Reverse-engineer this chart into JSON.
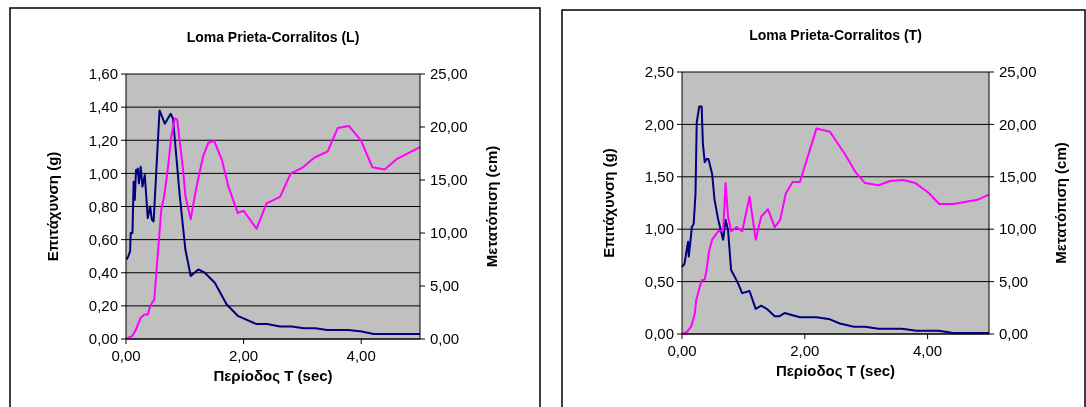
{
  "chart_data": [
    {
      "type": "line",
      "title": "Loma Prieta-Corralitos (L)",
      "xlabel": "Περίοδος Τ (sec)",
      "ylabel": "Επιτάχυνση (g)",
      "y2label": "Μετατόπιση (cm)",
      "grid": "y",
      "marker": "none",
      "xlim": [
        0,
        5
      ],
      "xticks": [
        {
          "value": 0,
          "label": "0,00"
        },
        {
          "value": 2,
          "label": "2,00"
        },
        {
          "value": 4,
          "label": "4,00"
        }
      ],
      "ylim": [
        0,
        1.6
      ],
      "yticks": [
        {
          "value": 0,
          "label": "0,00"
        },
        {
          "value": 0.2,
          "label": "0,20"
        },
        {
          "value": 0.4,
          "label": "0,40"
        },
        {
          "value": 0.6,
          "label": "0,60"
        },
        {
          "value": 0.8,
          "label": "0,80"
        },
        {
          "value": 1,
          "label": "1,00"
        },
        {
          "value": 1.2,
          "label": "1,20"
        },
        {
          "value": 1.4,
          "label": "1,40"
        },
        {
          "value": 1.6,
          "label": "1,60"
        }
      ],
      "y2lim": [
        0,
        25
      ],
      "y2ticks": [
        {
          "value": 0,
          "label": "0,00"
        },
        {
          "value": 5,
          "label": "5,00"
        },
        {
          "value": 10,
          "label": "10,00"
        },
        {
          "value": 15,
          "label": "15,00"
        },
        {
          "value": 20,
          "label": "20,00"
        },
        {
          "value": 25,
          "label": "25,00"
        }
      ],
      "series": [
        {
          "color": "#000080",
          "x": [
            0.01,
            0.04,
            0.07,
            0.08,
            0.11,
            0.13,
            0.15,
            0.17,
            0.19,
            0.2,
            0.22,
            0.25,
            0.28,
            0.32,
            0.37,
            0.41,
            0.44,
            0.47,
            0.57,
            0.66,
            0.76,
            0.8,
            0.91,
            1.01,
            1.1,
            1.23,
            1.34,
            1.51,
            1.71,
            1.9,
            2.22,
            2.4,
            2.62,
            2.82,
            3.02,
            3.22,
            3.42,
            3.78,
            4.01,
            4.21,
            5.0
          ],
          "values": [
            0.48,
            0.5,
            0.53,
            0.64,
            0.64,
            0.95,
            0.84,
            1.02,
            1,
            1.03,
            0.94,
            1.04,
            0.92,
            0.99,
            0.73,
            0.8,
            0.72,
            0.71,
            1.38,
            1.3,
            1.36,
            1.33,
            0.88,
            0.54,
            0.38,
            0.42,
            0.4,
            0.34,
            0.21,
            0.14,
            0.09,
            0.09,
            0.075,
            0.075,
            0.065,
            0.065,
            0.055,
            0.055,
            0.045,
            0.03,
            0.03
          ]
        },
        {
          "color": "#ff00ff",
          "axis": "y2",
          "x": [
            0,
            0.11,
            0.17,
            0.21,
            0.25,
            0.31,
            0.37,
            0.4,
            0.45,
            0.48,
            0.6,
            0.65,
            0.71,
            0.77,
            0.83,
            0.87,
            0.97,
            1.01,
            1.1,
            1.2,
            1.31,
            1.4,
            1.5,
            1.63,
            1.74,
            1.9,
            2.0,
            2.22,
            2.39,
            2.62,
            2.8,
            3.01,
            3.2,
            3.43,
            3.6,
            3.79,
            4.0,
            4.19,
            4.4,
            4.61,
            5.0
          ],
          "values": [
            0,
            0.3,
            0.9,
            1.5,
            2,
            2.3,
            2.3,
            2.9,
            3.5,
            3.7,
            12.2,
            13.5,
            16,
            19.1,
            20.8,
            20.7,
            16,
            13.5,
            11.3,
            14.4,
            17.2,
            18.5,
            18.7,
            16.9,
            14.4,
            11.9,
            12.1,
            10.4,
            12.8,
            13.4,
            15.6,
            16.2,
            17.1,
            17.7,
            19.9,
            20.1,
            18.7,
            16.2,
            16,
            17,
            18.1
          ]
        }
      ]
    },
    {
      "type": "line",
      "title": "Loma Prieta-Corralitos (T)",
      "xlabel": "Περίοδος Τ (sec)",
      "ylabel": "Επιτάχυνση (g)",
      "y2label": "Μετατόπιση (cm)",
      "grid": "y",
      "marker": "none",
      "xlim": [
        0,
        5
      ],
      "xticks": [
        {
          "value": 0,
          "label": "0,00"
        },
        {
          "value": 2,
          "label": "2,00"
        },
        {
          "value": 4,
          "label": "4,00"
        }
      ],
      "ylim": [
        0,
        2.5
      ],
      "yticks": [
        {
          "value": 0,
          "label": "0,00"
        },
        {
          "value": 0.5,
          "label": "0,50"
        },
        {
          "value": 1,
          "label": "1,00"
        },
        {
          "value": 1.5,
          "label": "1,50"
        },
        {
          "value": 2,
          "label": "2,00"
        },
        {
          "value": 2.5,
          "label": "2,50"
        }
      ],
      "y2lim": [
        0,
        25
      ],
      "y2ticks": [
        {
          "value": 0,
          "label": "0,00"
        },
        {
          "value": 5,
          "label": "5,00"
        },
        {
          "value": 10,
          "label": "10,00"
        },
        {
          "value": 15,
          "label": "15,00"
        },
        {
          "value": 20,
          "label": "20,00"
        },
        {
          "value": 25,
          "label": "25,00"
        }
      ],
      "series": [
        {
          "color": "#000080",
          "x": [
            0,
            0.04,
            0.07,
            0.1,
            0.11,
            0.14,
            0.16,
            0.19,
            0.22,
            0.24,
            0.28,
            0.32,
            0.34,
            0.37,
            0.4,
            0.43,
            0.49,
            0.53,
            0.59,
            0.67,
            0.71,
            0.75,
            0.8,
            0.9,
            0.98,
            1.1,
            1.2,
            1.29,
            1.38,
            1.51,
            1.59,
            1.67,
            1.92,
            2.19,
            2.41,
            2.57,
            2.8,
            2.98,
            3.2,
            3.58,
            3.82,
            4.18,
            4.42,
            5.0
          ],
          "values": [
            0.64,
            0.67,
            0.78,
            0.88,
            0.74,
            0.9,
            1.02,
            1.05,
            1.34,
            2.02,
            2.17,
            2.17,
            1.82,
            1.64,
            1.67,
            1.67,
            1.53,
            1.28,
            1.09,
            0.9,
            1.09,
            0.99,
            0.61,
            0.5,
            0.39,
            0.41,
            0.24,
            0.27,
            0.24,
            0.17,
            0.17,
            0.2,
            0.16,
            0.16,
            0.14,
            0.1,
            0.07,
            0.07,
            0.05,
            0.05,
            0.03,
            0.03,
            0.01,
            0.01
          ]
        },
        {
          "color": "#ff00ff",
          "axis": "y2",
          "x": [
            0,
            0.08,
            0.15,
            0.21,
            0.23,
            0.29,
            0.32,
            0.37,
            0.4,
            0.44,
            0.49,
            0.59,
            0.67,
            0.71,
            0.75,
            0.8,
            0.89,
            0.98,
            1.1,
            1.2,
            1.29,
            1.4,
            1.51,
            1.6,
            1.69,
            1.8,
            1.92,
            2.19,
            2.41,
            2.66,
            2.82,
            2.98,
            3.2,
            3.39,
            3.6,
            3.8,
            4.01,
            4.19,
            4.42,
            4.81,
            5.0
          ],
          "values": [
            0,
            0.2,
            0.7,
            2,
            3.2,
            4.5,
            5.1,
            5.2,
            6.1,
            7.9,
            9,
            9.8,
            9.9,
            14.4,
            11.2,
            9.8,
            10.2,
            9.8,
            13.1,
            9,
            11.2,
            11.9,
            10.2,
            10.9,
            13.4,
            14.5,
            14.5,
            19.6,
            19.3,
            17.1,
            15.5,
            14.4,
            14.2,
            14.6,
            14.7,
            14.4,
            13.5,
            12.4,
            12.4,
            12.8,
            13.3
          ]
        }
      ]
    }
  ]
}
